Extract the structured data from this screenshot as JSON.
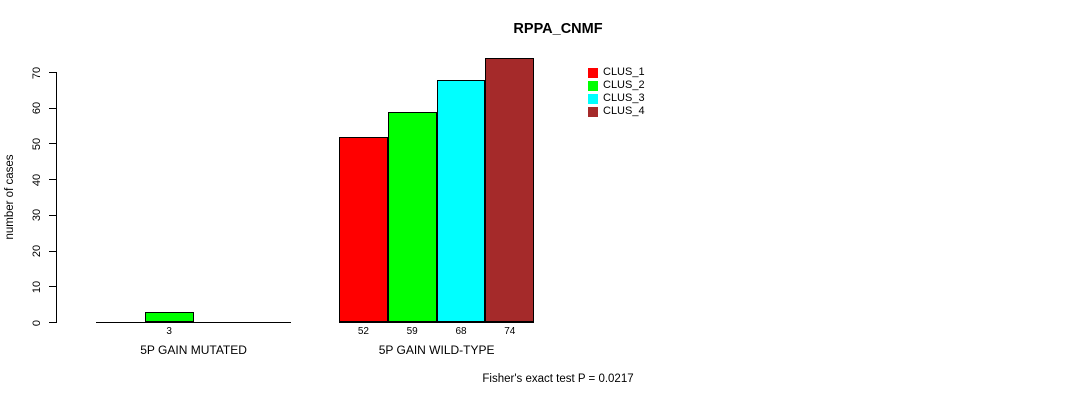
{
  "chart_data": {
    "type": "bar",
    "title": "RPPA_CNMF",
    "ylabel": "number of cases",
    "xlabel": "",
    "ylim": [
      0,
      70
    ],
    "yticks": [
      0,
      10,
      20,
      30,
      40,
      50,
      60,
      70
    ],
    "grid": false,
    "legend_position": "top-right",
    "categories": [
      "5P GAIN MUTATED",
      "5P GAIN WILD-TYPE"
    ],
    "series": [
      {
        "name": "CLUS_1",
        "color": "#ff0000",
        "values": [
          0,
          52
        ]
      },
      {
        "name": "CLUS_2",
        "color": "#00ff00",
        "values": [
          3,
          59
        ]
      },
      {
        "name": "CLUS_3",
        "color": "#00ffff",
        "values": [
          0,
          68
        ]
      },
      {
        "name": "CLUS_4",
        "color": "#a52a2a",
        "values": [
          0,
          74
        ]
      }
    ],
    "bar_value_labels": {
      "shown_when": "value > 0",
      "values_shown": [
        3,
        52,
        59,
        68,
        74
      ]
    },
    "annotation": "Fisher's exact test P = 0.0217"
  }
}
